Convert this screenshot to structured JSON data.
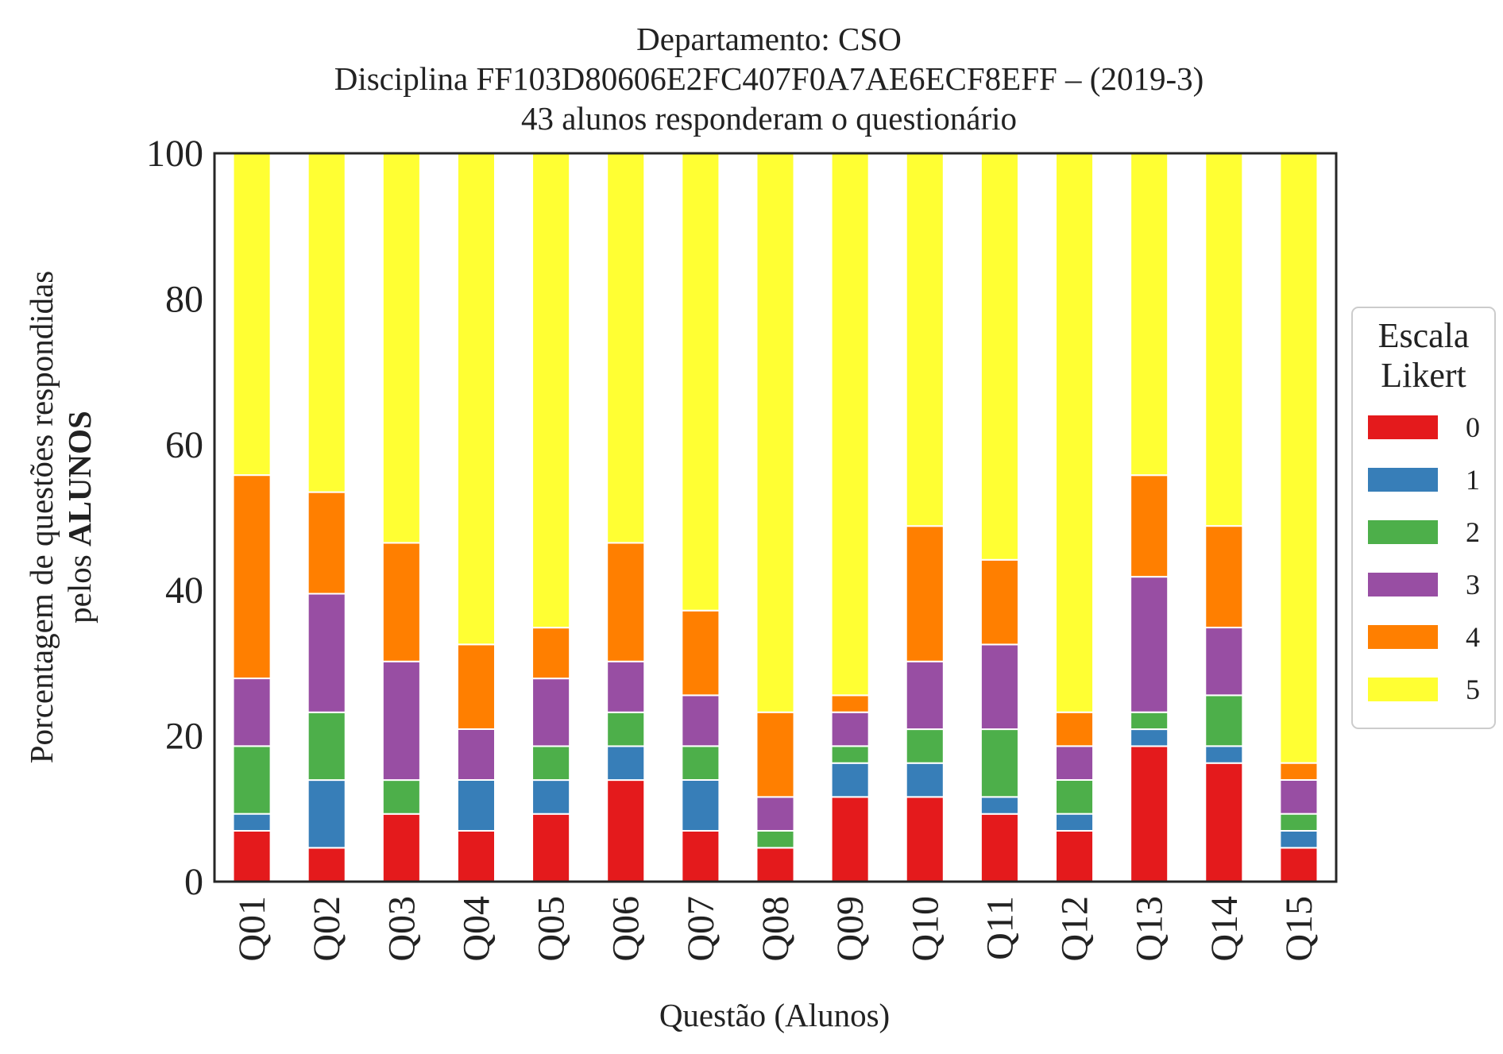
{
  "chart_data": {
    "type": "bar",
    "stacked": true,
    "title_lines": [
      "Departamento: CSO",
      "Disciplina FF103D80606E2FC407F0A7AE6ECF8EFF – (2019-3)",
      "43 alunos responderam o questionário"
    ],
    "xlabel": "Questão (Alunos)",
    "ylabel_line1": "Porcentagem de questões respondidas",
    "ylabel_line2_prefix": "pelos ",
    "ylabel_line2_bold": "ALUNOS",
    "ylim": [
      0,
      100
    ],
    "yticks": [
      "0",
      "20",
      "40",
      "60",
      "80",
      "100"
    ],
    "grid": false,
    "categories": [
      "Q01",
      "Q02",
      "Q03",
      "Q04",
      "Q05",
      "Q06",
      "Q07",
      "Q08",
      "Q09",
      "Q10",
      "Q11",
      "Q12",
      "Q13",
      "Q14",
      "Q15"
    ],
    "legend": {
      "title_lines": [
        "Escala",
        "Likert"
      ],
      "placement": "right"
    },
    "series": [
      {
        "name": "0",
        "color": "#e41a1c",
        "values": [
          6.98,
          4.65,
          9.3,
          6.98,
          9.3,
          13.95,
          6.98,
          4.65,
          11.63,
          11.63,
          9.3,
          6.98,
          18.6,
          16.28,
          4.65
        ]
      },
      {
        "name": "1",
        "color": "#377eb8",
        "values": [
          2.33,
          9.3,
          0,
          6.98,
          4.65,
          4.65,
          6.98,
          0,
          4.65,
          4.65,
          2.33,
          2.33,
          2.33,
          2.33,
          2.33
        ]
      },
      {
        "name": "2",
        "color": "#4daf4a",
        "values": [
          9.3,
          9.3,
          4.65,
          0,
          4.65,
          4.65,
          4.65,
          2.33,
          2.33,
          4.65,
          9.3,
          4.65,
          2.33,
          6.98,
          2.33
        ]
      },
      {
        "name": "3",
        "color": "#984ea3",
        "values": [
          9.3,
          16.28,
          16.28,
          6.98,
          9.3,
          6.98,
          6.98,
          4.65,
          4.65,
          9.3,
          11.63,
          4.65,
          18.6,
          9.3,
          4.65
        ]
      },
      {
        "name": "4",
        "color": "#ff7f00",
        "values": [
          27.91,
          13.95,
          16.28,
          11.63,
          6.98,
          16.28,
          11.63,
          11.63,
          2.33,
          18.6,
          11.63,
          4.65,
          13.95,
          13.95,
          2.33
        ]
      },
      {
        "name": "5",
        "color": "#ffff33",
        "values": [
          44.19,
          46.51,
          53.49,
          67.44,
          65.12,
          53.49,
          62.79,
          76.74,
          74.42,
          51.16,
          55.81,
          76.74,
          44.19,
          51.16,
          83.72
        ]
      }
    ]
  }
}
